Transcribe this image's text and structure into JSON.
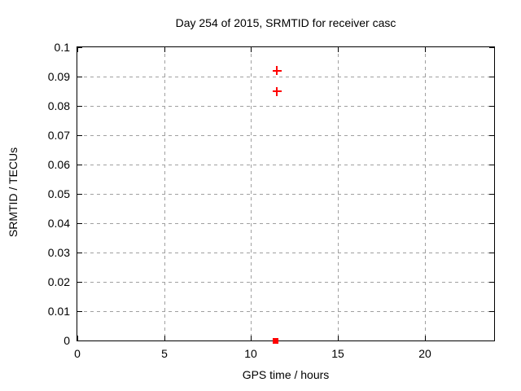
{
  "chart_data": {
    "type": "scatter",
    "title": "Day 254 of 2015, SRMTID for receiver casc",
    "xlabel": "GPS time / hours",
    "ylabel": "SRMTID / TECUs",
    "xlim": [
      0,
      24
    ],
    "ylim": [
      0,
      0.1
    ],
    "grid": true,
    "grid_style": "dashed",
    "legend_position": "none",
    "x_ticks": [
      {
        "value": 0,
        "label": "0"
      },
      {
        "value": 5,
        "label": "5"
      },
      {
        "value": 10,
        "label": "10"
      },
      {
        "value": 15,
        "label": "15"
      },
      {
        "value": 20,
        "label": "20"
      }
    ],
    "y_ticks": [
      {
        "value": 0,
        "label": "0"
      },
      {
        "value": 0.01,
        "label": "0.01"
      },
      {
        "value": 0.02,
        "label": "0.02"
      },
      {
        "value": 0.03,
        "label": "0.03"
      },
      {
        "value": 0.04,
        "label": "0.04"
      },
      {
        "value": 0.05,
        "label": "0.05"
      },
      {
        "value": 0.06,
        "label": "0.06"
      },
      {
        "value": 0.07,
        "label": "0.07"
      },
      {
        "value": 0.08,
        "label": "0.08"
      },
      {
        "value": 0.09,
        "label": "0.09"
      },
      {
        "value": 0.1,
        "label": "0.1"
      }
    ],
    "series": [
      {
        "name": "plus_points",
        "marker": "plus",
        "color": "#ff0000",
        "points": [
          {
            "x": 11.5,
            "y": 0.092
          },
          {
            "x": 11.5,
            "y": 0.085
          }
        ]
      },
      {
        "name": "square_points",
        "marker": "filled-square",
        "color": "#ff0000",
        "points": [
          {
            "x": 11.4,
            "y": 0
          }
        ]
      }
    ],
    "colors": {
      "marker": "#ff0000",
      "grid": "#a0a0a0",
      "axis": "#000000",
      "text": "#000000",
      "background": "#ffffff"
    }
  }
}
